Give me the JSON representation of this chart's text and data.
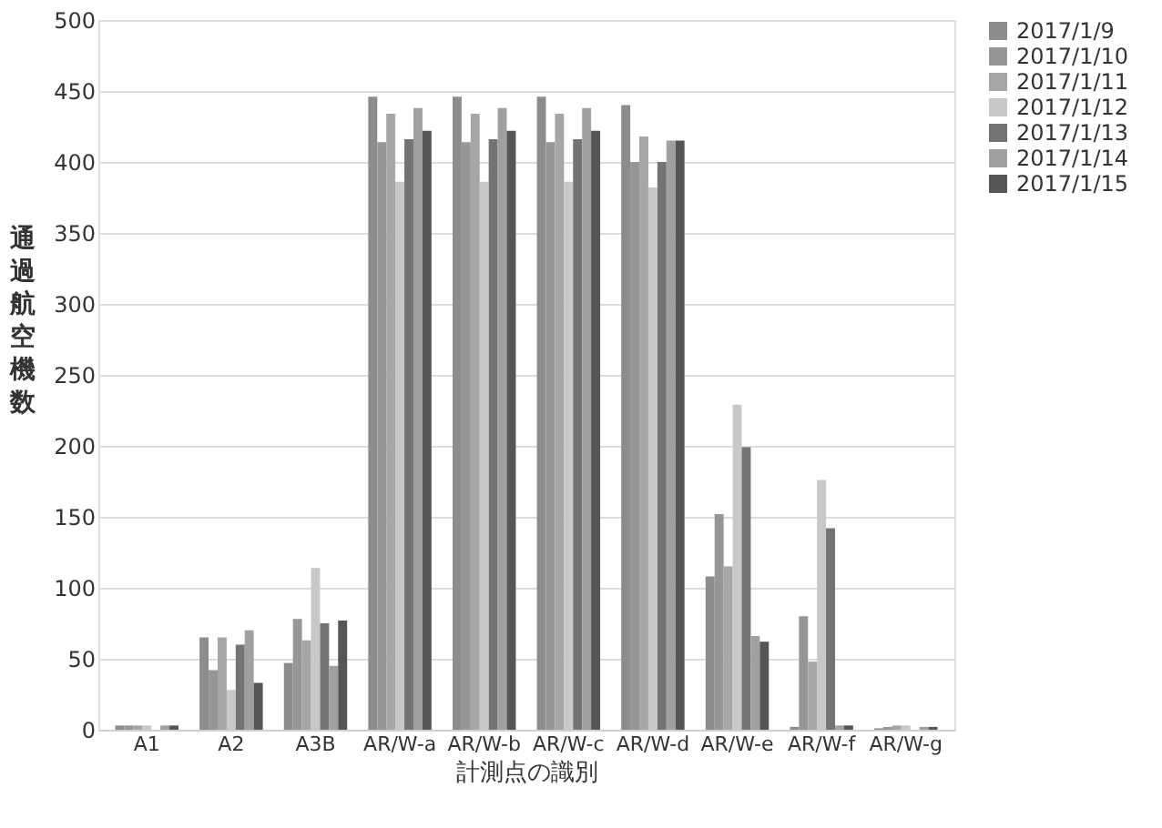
{
  "chart_data": {
    "type": "bar",
    "xlabel": "計測点の識別",
    "ylabel": "通過航空機数",
    "categories": [
      "A1",
      "A2",
      "A3B",
      "AR/W-a",
      "AR/W-b",
      "AR/W-c",
      "AR/W-d",
      "AR/W-e",
      "AR/W-f",
      "AR/W-g"
    ],
    "series": [
      {
        "name": "2017/1/9",
        "color": "#8c8c8c",
        "values": [
          3,
          65,
          47,
          446,
          446,
          446,
          440,
          108,
          2,
          1
        ]
      },
      {
        "name": "2017/1/10",
        "color": "#969696",
        "values": [
          3,
          42,
          78,
          414,
          414,
          414,
          400,
          152,
          80,
          2
        ]
      },
      {
        "name": "2017/1/11",
        "color": "#a6a6a6",
        "values": [
          3,
          65,
          63,
          434,
          434,
          434,
          418,
          115,
          48,
          3
        ]
      },
      {
        "name": "2017/1/12",
        "color": "#c8c8c8",
        "values": [
          3,
          28,
          114,
          386,
          386,
          386,
          382,
          229,
          176,
          3
        ]
      },
      {
        "name": "2017/1/13",
        "color": "#737373",
        "values": [
          null,
          60,
          75,
          416,
          416,
          416,
          400,
          199,
          142,
          null
        ]
      },
      {
        "name": "2017/1/14",
        "color": "#a0a0a0",
        "values": [
          3,
          70,
          45,
          438,
          438,
          438,
          415,
          66,
          3,
          2
        ]
      },
      {
        "name": "2017/1/15",
        "color": "#555555",
        "values": [
          3,
          33,
          77,
          422,
          422,
          422,
          415,
          62,
          3,
          2
        ]
      }
    ],
    "ylim": [
      0,
      500
    ],
    "yticks": [
      0,
      50,
      100,
      150,
      200,
      250,
      300,
      350,
      400,
      450,
      500
    ],
    "grid": "y",
    "legend": "right"
  }
}
